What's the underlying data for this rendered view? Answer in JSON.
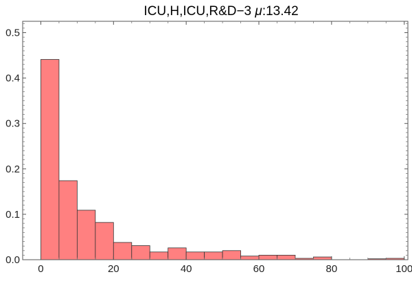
{
  "chart_data": {
    "type": "bar",
    "title": "ICU,H,ICU,R&D−3 μ:13.42",
    "title_prefix": "ICU,H,ICU,R&D−3 ",
    "title_mu": "μ",
    "title_value": ":13.42",
    "xlabel": "",
    "ylabel": "",
    "xlim": [
      -5,
      101
    ],
    "ylim": [
      0,
      0.525
    ],
    "xticks": [
      0,
      20,
      40,
      60,
      80,
      100
    ],
    "xtick_labels": [
      "0",
      "20",
      "40",
      "60",
      "80",
      "100"
    ],
    "yticks": [
      0.0,
      0.1,
      0.2,
      0.3,
      0.4,
      0.5
    ],
    "ytick_labels": [
      "0.0",
      "0.1",
      "0.2",
      "0.3",
      "0.4",
      "0.5"
    ],
    "bin_width": 5,
    "bins": [
      {
        "x0": 0,
        "x1": 5,
        "value": 0.441
      },
      {
        "x0": 5,
        "x1": 10,
        "value": 0.174
      },
      {
        "x0": 10,
        "x1": 15,
        "value": 0.109
      },
      {
        "x0": 15,
        "x1": 20,
        "value": 0.082
      },
      {
        "x0": 20,
        "x1": 25,
        "value": 0.038
      },
      {
        "x0": 25,
        "x1": 30,
        "value": 0.031
      },
      {
        "x0": 30,
        "x1": 35,
        "value": 0.017
      },
      {
        "x0": 35,
        "x1": 40,
        "value": 0.026
      },
      {
        "x0": 40,
        "x1": 45,
        "value": 0.017
      },
      {
        "x0": 45,
        "x1": 50,
        "value": 0.017
      },
      {
        "x0": 50,
        "x1": 55,
        "value": 0.02
      },
      {
        "x0": 55,
        "x1": 60,
        "value": 0.008
      },
      {
        "x0": 60,
        "x1": 65,
        "value": 0.01
      },
      {
        "x0": 65,
        "x1": 70,
        "value": 0.01
      },
      {
        "x0": 70,
        "x1": 75,
        "value": 0.003
      },
      {
        "x0": 75,
        "x1": 80,
        "value": 0.006
      },
      {
        "x0": 90,
        "x1": 95,
        "value": 0.002
      },
      {
        "x0": 95,
        "x1": 100,
        "value": 0.003
      }
    ],
    "grid": false,
    "bar_color": "#ff8080",
    "bar_edge_color": "#333333"
  }
}
